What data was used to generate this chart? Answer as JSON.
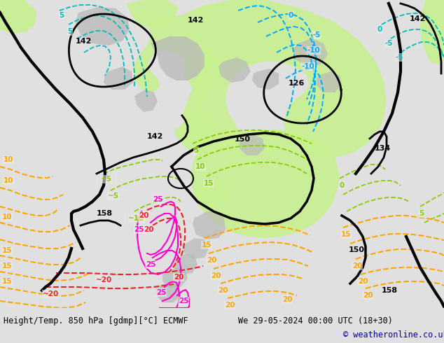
{
  "title_left": "Height/Temp. 850 hPa [gdmp][°C] ECMWF",
  "title_right": "We 29-05-2024 00:00 UTC (18+30)",
  "copyright": "© weatheronline.co.uk",
  "bg_color": "#e0e0e0",
  "map_bg": "#ebebeb",
  "green_light": "#c8f090",
  "green_mid": "#a8e060",
  "gray_topo": "#b8b8b8",
  "bottom_white": "#ffffff",
  "label_fontsize": 8.5,
  "copyright_fontsize": 8.5,
  "orange": "#FFA500",
  "red": "#EE2222",
  "magenta": "#FF00CC",
  "cyan_blue": "#00AAFF",
  "teal": "#00BBBB",
  "lime": "#88CC00",
  "dark_blue": "#0000AA"
}
